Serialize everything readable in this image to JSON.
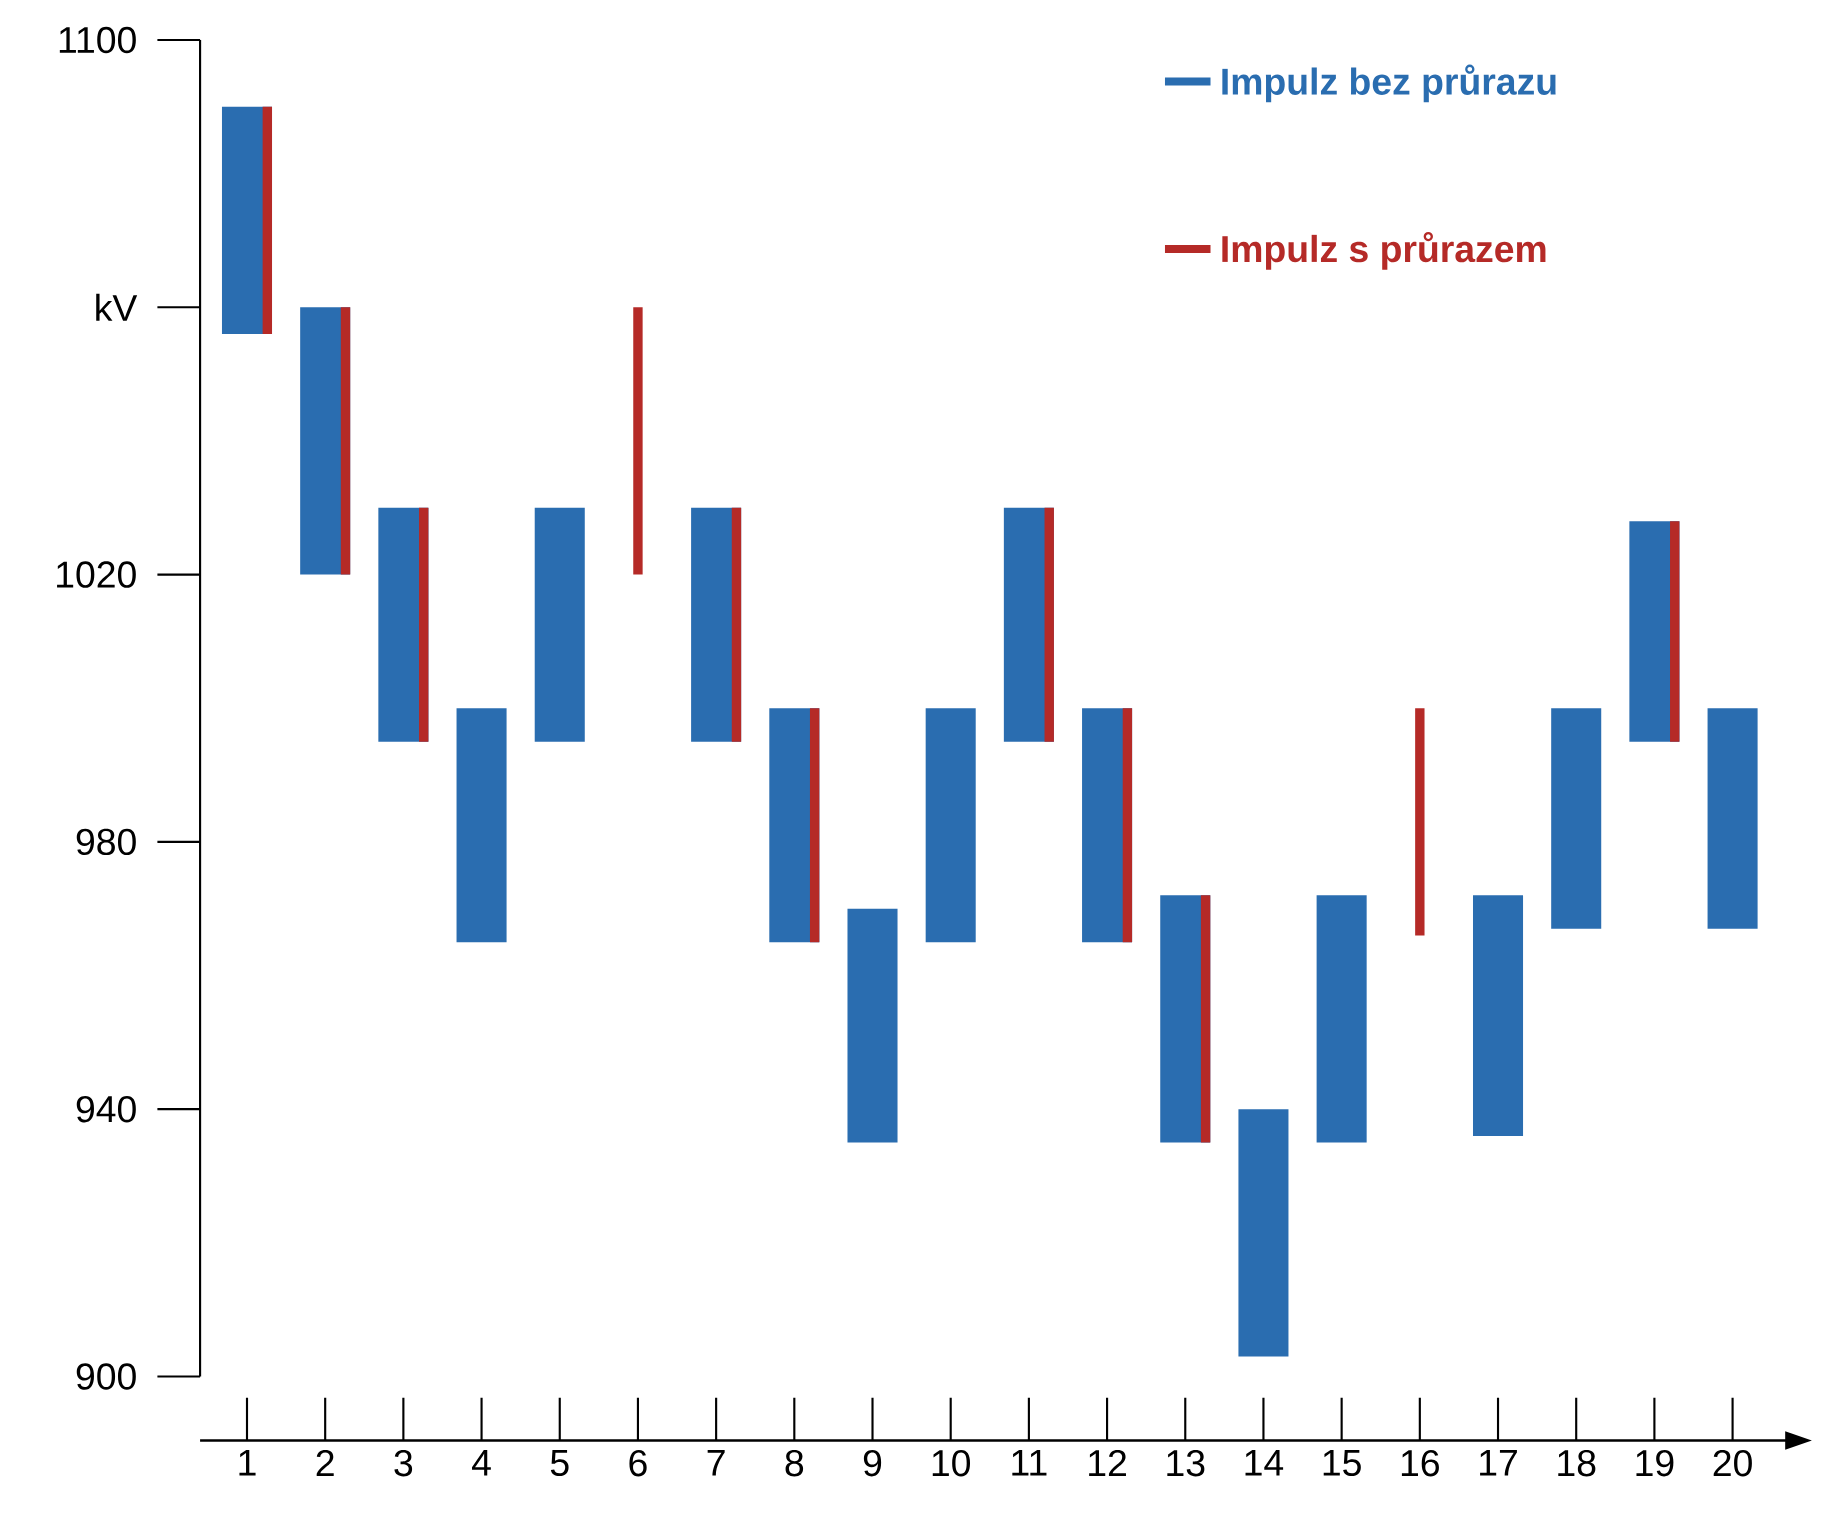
{
  "chart_data": {
    "type": "bar",
    "legend": "top right",
    "categories": [
      "1",
      "2",
      "3",
      "4",
      "5",
      "6",
      "7",
      "8",
      "9",
      "10",
      "11",
      "12",
      "13",
      "14",
      "15",
      "16",
      "17",
      "18",
      "19",
      "20"
    ],
    "series": [
      {
        "name": "Impulz bez průrazu",
        "color": "#2a6db0",
        "base": [
          1056,
          1020,
          995,
          965,
          995,
          null,
          995,
          965,
          935,
          965,
          995,
          965,
          935,
          903,
          935,
          null,
          936,
          967,
          995,
          967
        ],
        "values": [
          34,
          40,
          35,
          35,
          35,
          null,
          35,
          35,
          35,
          35,
          35,
          35,
          37,
          37,
          37,
          null,
          36,
          33,
          33,
          33
        ]
      },
      {
        "name": "Impulz s průrazem",
        "color": "#b52a27",
        "base": [
          1056,
          1020,
          995,
          null,
          null,
          1020,
          995,
          965,
          null,
          null,
          995,
          965,
          935,
          null,
          null,
          966,
          null,
          null,
          995,
          null
        ],
        "values": [
          34,
          40,
          35,
          null,
          null,
          40,
          35,
          35,
          null,
          null,
          35,
          35,
          37,
          null,
          null,
          34,
          null,
          null,
          33,
          null
        ]
      }
    ],
    "ylim": [
      900,
      1100
    ],
    "yticks": [
      900,
      940,
      980,
      1020,
      {
        "value": 1060,
        "label": "kV"
      },
      1100
    ]
  }
}
